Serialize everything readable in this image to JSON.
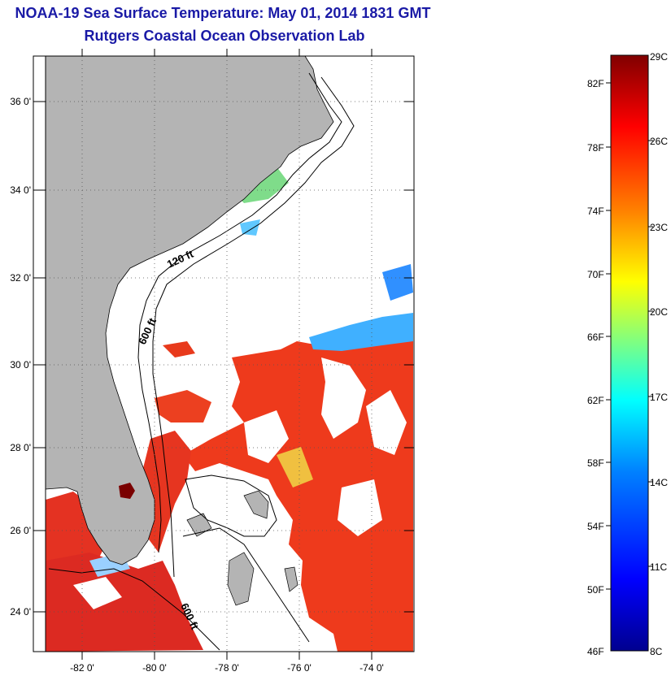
{
  "title": "NOAA-19 Sea Surface Temperature:  May 01, 2014 1831 GMT",
  "subtitle": "Rutgers Coastal Ocean Observation Lab",
  "map": {
    "lon_ticks": [
      "-82 0'",
      "-80 0'",
      "-78 0'",
      "-76 0'",
      "-74 0'"
    ],
    "lat_ticks": [
      "36 0'",
      "34 0'",
      "32 0'",
      "30 0'",
      "28 0'",
      "26 0'",
      "24 0'"
    ],
    "contours": [
      "120 ft",
      "600 ft",
      "600 ft"
    ],
    "colors": {
      "land": "#b4b4b4",
      "ocean_no_data": "#ffffff",
      "warm_sst": "#ee3a1c"
    }
  },
  "colorbar": {
    "fahrenheit": [
      "82F",
      "78F",
      "74F",
      "70F",
      "66F",
      "62F",
      "58F",
      "54F",
      "50F",
      "46F"
    ],
    "celsius": [
      "29C",
      "26C",
      "23C",
      "20C",
      "17C",
      "14C",
      "11C",
      "8C"
    ],
    "colors": [
      "#00008f",
      "#0000ff",
      "#0080ff",
      "#00ffff",
      "#80ff80",
      "#ffff00",
      "#ff8000",
      "#ff0000",
      "#800000"
    ]
  }
}
